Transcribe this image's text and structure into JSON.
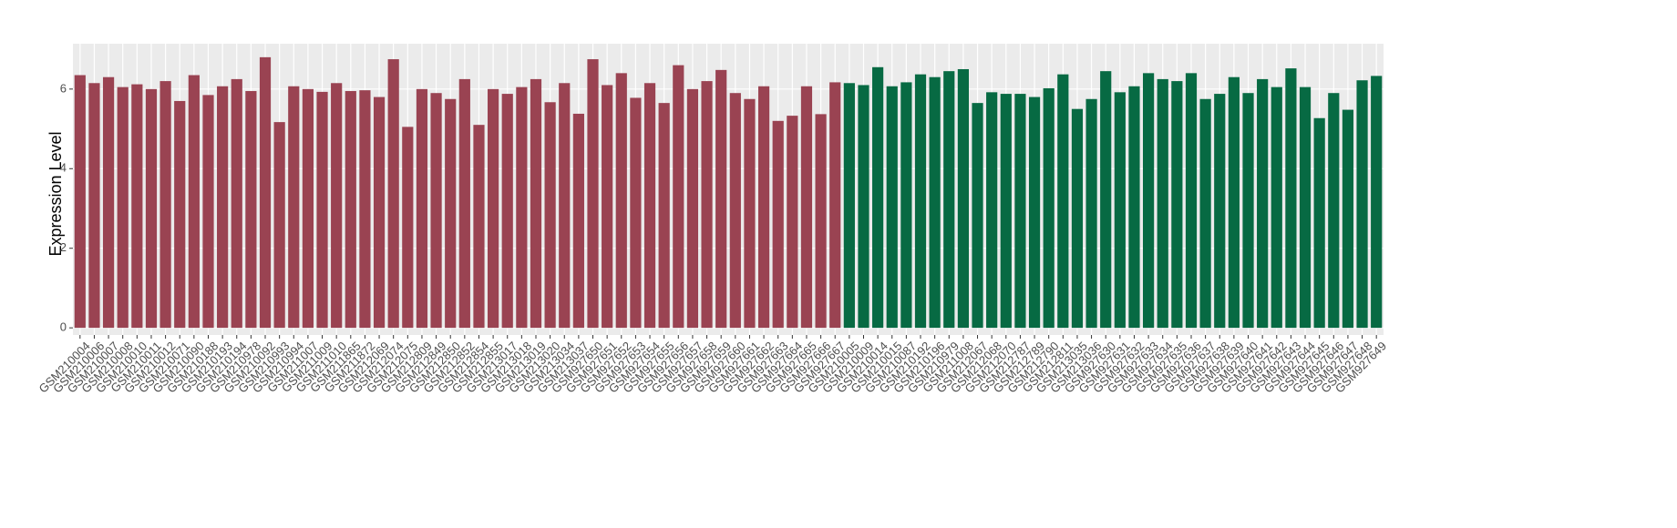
{
  "chart_data": {
    "type": "bar",
    "y_label": "Expression Level",
    "categories": [
      "GSM210004",
      "GSM210006",
      "GSM210007",
      "GSM210008",
      "GSM210010",
      "GSM210011",
      "GSM210012",
      "GSM210071",
      "GSM210090",
      "GSM210188",
      "GSM210193",
      "GSM210194",
      "GSM210978",
      "GSM210092",
      "GSM210993",
      "GSM210994",
      "GSM211007",
      "GSM211009",
      "GSM211010",
      "GSM211865",
      "GSM211872",
      "GSM212069",
      "GSM212074",
      "GSM212075",
      "GSM212809",
      "GSM212849",
      "GSM212850",
      "GSM212852",
      "GSM212854",
      "GSM212855",
      "GSM213017",
      "GSM213018",
      "GSM213019",
      "GSM213020",
      "GSM213034",
      "GSM213037",
      "GSM927650",
      "GSM927651",
      "GSM927652",
      "GSM927653",
      "GSM927654",
      "GSM927655",
      "GSM927656",
      "GSM927657",
      "GSM927658",
      "GSM927659",
      "GSM927660",
      "GSM927661",
      "GSM927662",
      "GSM927663",
      "GSM927664",
      "GSM927665",
      "GSM927666",
      "GSM927667",
      "GSM210005",
      "GSM210009",
      "GSM210014",
      "GSM210015",
      "GSM210087",
      "GSM210192",
      "GSM210196",
      "GSM210979",
      "GSM211008",
      "GSM212067",
      "GSM212068",
      "GSM212070",
      "GSM212787",
      "GSM212789",
      "GSM212790",
      "GSM212811",
      "GSM213035",
      "GSM213036",
      "GSM927630",
      "GSM927631",
      "GSM927632",
      "GSM927633",
      "GSM927634",
      "GSM927635",
      "GSM927636",
      "GSM927637",
      "GSM927638",
      "GSM927639",
      "GSM927640",
      "GSM927641",
      "GSM927642",
      "GSM927643",
      "GSM927644",
      "GSM927645",
      "GSM927646",
      "GSM927647",
      "GSM927648",
      "GSM927649"
    ],
    "values": [
      6.35,
      6.15,
      6.3,
      6.05,
      6.12,
      6.0,
      6.2,
      5.7,
      6.35,
      5.85,
      6.07,
      6.25,
      5.95,
      6.8,
      5.17,
      6.07,
      6.0,
      5.93,
      6.15,
      5.95,
      5.97,
      5.8,
      6.75,
      5.05,
      6.0,
      5.9,
      5.75,
      6.25,
      5.1,
      6.0,
      5.88,
      6.05,
      6.25,
      5.67,
      6.15,
      5.38,
      6.75,
      6.1,
      6.4,
      5.78,
      6.15,
      5.65,
      6.6,
      6.0,
      6.2,
      6.48,
      5.9,
      5.75,
      6.07,
      5.2,
      5.33,
      6.07,
      5.37,
      6.17,
      6.15,
      6.1,
      6.55,
      6.07,
      6.17,
      6.37,
      6.3,
      6.45,
      6.5,
      5.65,
      5.92,
      5.88,
      5.88,
      5.8,
      6.02,
      6.37,
      5.5,
      5.75,
      6.45,
      5.92,
      6.07,
      6.4,
      6.25,
      6.2,
      6.4,
      5.75,
      5.88,
      6.3,
      5.9,
      6.25,
      6.05,
      6.52,
      6.05,
      5.27,
      5.9,
      5.48,
      6.22,
      6.33
    ],
    "bar_colors": [
      "#9a4352",
      "#9a4352",
      "#9a4352",
      "#9a4352",
      "#9a4352",
      "#9a4352",
      "#9a4352",
      "#9a4352",
      "#9a4352",
      "#9a4352",
      "#9a4352",
      "#9a4352",
      "#9a4352",
      "#9a4352",
      "#9a4352",
      "#9a4352",
      "#9a4352",
      "#9a4352",
      "#9a4352",
      "#9a4352",
      "#9a4352",
      "#9a4352",
      "#9a4352",
      "#9a4352",
      "#9a4352",
      "#9a4352",
      "#9a4352",
      "#9a4352",
      "#9a4352",
      "#9a4352",
      "#9a4352",
      "#9a4352",
      "#9a4352",
      "#9a4352",
      "#9a4352",
      "#9a4352",
      "#9a4352",
      "#9a4352",
      "#9a4352",
      "#9a4352",
      "#9a4352",
      "#9a4352",
      "#9a4352",
      "#9a4352",
      "#9a4352",
      "#9a4352",
      "#9a4352",
      "#9a4352",
      "#9a4352",
      "#9a4352",
      "#9a4352",
      "#9a4352",
      "#9a4352",
      "#9a4352",
      "#076a43",
      "#076a43",
      "#076a43",
      "#076a43",
      "#076a43",
      "#076a43",
      "#076a43",
      "#076a43",
      "#076a43",
      "#076a43",
      "#076a43",
      "#076a43",
      "#076a43",
      "#076a43",
      "#076a43",
      "#076a43",
      "#076a43",
      "#076a43",
      "#076a43",
      "#076a43",
      "#076a43",
      "#076a43",
      "#076a43",
      "#076a43",
      "#076a43",
      "#076a43",
      "#076a43",
      "#076a43",
      "#076a43",
      "#076a43",
      "#076a43",
      "#076a43",
      "#076a43",
      "#076a43",
      "#076a43",
      "#076a43",
      "#076a43",
      "#076a43"
    ],
    "ylim": [
      -0.18,
      7.14
    ],
    "yticks": [
      0,
      2,
      4,
      6
    ],
    "grid": true
  }
}
